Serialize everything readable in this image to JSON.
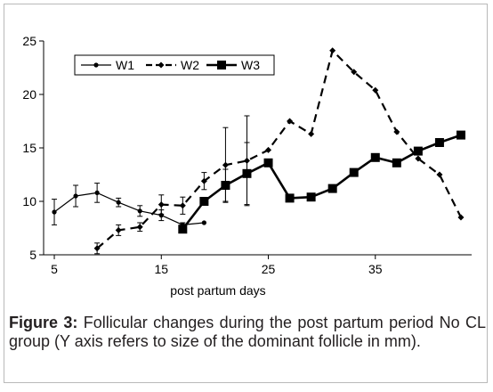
{
  "figure": {
    "caption_label": "Figure 3:",
    "caption_text": "Follicular changes during the post partum period No CL group (Y axis refers to size of the dominant follicle in mm)."
  },
  "chart_data": {
    "type": "line",
    "title": "",
    "xlabel": "post partum days",
    "ylabel": "",
    "xlim": [
      4,
      44
    ],
    "ylim": [
      5,
      25
    ],
    "x_ticks": [
      5,
      15,
      25,
      35
    ],
    "y_ticks": [
      5,
      10,
      15,
      20,
      25
    ],
    "grid": false,
    "legend_position": "top-left",
    "series": [
      {
        "name": "W1",
        "style": "solid-thin",
        "marker": "small-dot",
        "color": "#000000",
        "points": [
          {
            "x": 5,
            "y": 9.0,
            "err": 1.2
          },
          {
            "x": 7,
            "y": 10.5,
            "err": 1.0
          },
          {
            "x": 9,
            "y": 10.8,
            "err": 0.9
          },
          {
            "x": 11,
            "y": 9.9,
            "err": 0.4
          },
          {
            "x": 13,
            "y": 9.1,
            "err": 0.5
          },
          {
            "x": 15,
            "y": 8.7,
            "err": 0.5
          },
          {
            "x": 17,
            "y": 7.8,
            "err": 0.2
          },
          {
            "x": 19,
            "y": 8.0,
            "err": 0
          }
        ]
      },
      {
        "name": "W2",
        "style": "dashed",
        "marker": "small-diamond",
        "color": "#000000",
        "points": [
          {
            "x": 9,
            "y": 5.6,
            "err": 0.5
          },
          {
            "x": 11,
            "y": 7.3,
            "err": 0.5
          },
          {
            "x": 13,
            "y": 7.6,
            "err": 0.4
          },
          {
            "x": 15,
            "y": 9.7,
            "err": 0.9
          },
          {
            "x": 17,
            "y": 9.6,
            "err": 0.8
          },
          {
            "x": 19,
            "y": 11.9,
            "err": 0.8
          },
          {
            "x": 21,
            "y": 13.4,
            "err": 3.5
          },
          {
            "x": 23,
            "y": 13.8,
            "err": 4.2
          },
          {
            "x": 25,
            "y": 14.8,
            "err": 0
          },
          {
            "x": 27,
            "y": 17.5,
            "err": 0
          },
          {
            "x": 29,
            "y": 16.3,
            "err": 0
          },
          {
            "x": 31,
            "y": 24.1,
            "err": 0
          },
          {
            "x": 33,
            "y": 22.1,
            "err": 0
          },
          {
            "x": 35,
            "y": 20.4,
            "err": 0
          },
          {
            "x": 37,
            "y": 16.5,
            "err": 0
          },
          {
            "x": 39,
            "y": 14.0,
            "err": 0
          },
          {
            "x": 41,
            "y": 12.5,
            "err": 0
          },
          {
            "x": 43,
            "y": 8.5,
            "err": 0
          }
        ]
      },
      {
        "name": "W3",
        "style": "solid-thick",
        "marker": "square",
        "color": "#000000",
        "points": [
          {
            "x": 17,
            "y": 7.4,
            "err": 0
          },
          {
            "x": 19,
            "y": 10.0,
            "err": 0
          },
          {
            "x": 21,
            "y": 11.5,
            "err": 1.5
          },
          {
            "x": 23,
            "y": 12.6,
            "err": 2.9
          },
          {
            "x": 25,
            "y": 13.6,
            "err": 0
          },
          {
            "x": 27,
            "y": 10.3,
            "err": 0
          },
          {
            "x": 29,
            "y": 10.4,
            "err": 0
          },
          {
            "x": 31,
            "y": 11.2,
            "err": 0
          },
          {
            "x": 33,
            "y": 12.7,
            "err": 0
          },
          {
            "x": 35,
            "y": 14.1,
            "err": 0
          },
          {
            "x": 37,
            "y": 13.6,
            "err": 0
          },
          {
            "x": 39,
            "y": 14.7,
            "err": 0
          },
          {
            "x": 41,
            "y": 15.5,
            "err": 0
          },
          {
            "x": 43,
            "y": 16.2,
            "err": 0
          }
        ]
      }
    ]
  }
}
